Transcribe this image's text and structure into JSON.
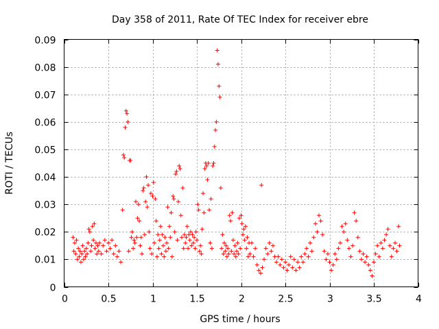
{
  "chart_data": {
    "type": "scatter",
    "title": "Day 358 of 2011, Rate Of TEC Index for receiver ebre",
    "xlabel": "GPS time / hours",
    "ylabel": "ROTI / TECUs",
    "xlim": [
      0,
      4
    ],
    "ylim": [
      0,
      0.09
    ],
    "xticks": [
      0,
      0.5,
      1,
      1.5,
      2,
      2.5,
      3,
      3.5,
      4
    ],
    "xtick_labels": [
      "0",
      "0.5",
      "1",
      "1.5",
      "2",
      "2.5",
      "3",
      "3.5",
      "4"
    ],
    "yticks": [
      0,
      0.01,
      0.02,
      0.03,
      0.04,
      0.05,
      0.06,
      0.07,
      0.08,
      0.09
    ],
    "ytick_labels": [
      "0",
      "0.01",
      "0.02",
      "0.03",
      "0.04",
      "0.05",
      "0.06",
      "0.07",
      "0.08",
      "0.09"
    ],
    "grid": true,
    "marker": "+",
    "color": "#ff0000",
    "series": [
      {
        "name": "ROTI",
        "points": [
          [
            0.1,
            0.018
          ],
          [
            0.11,
            0.013
          ],
          [
            0.12,
            0.016
          ],
          [
            0.13,
            0.012
          ],
          [
            0.14,
            0.017
          ],
          [
            0.15,
            0.01
          ],
          [
            0.16,
            0.014
          ],
          [
            0.17,
            0.011
          ],
          [
            0.18,
            0.013
          ],
          [
            0.19,
            0.009
          ],
          [
            0.2,
            0.012
          ],
          [
            0.21,
            0.015
          ],
          [
            0.22,
            0.01
          ],
          [
            0.23,
            0.013
          ],
          [
            0.24,
            0.011
          ],
          [
            0.25,
            0.014
          ],
          [
            0.26,
            0.012
          ],
          [
            0.27,
            0.016
          ],
          [
            0.28,
            0.021
          ],
          [
            0.29,
            0.02
          ],
          [
            0.3,
            0.013
          ],
          [
            0.31,
            0.015
          ],
          [
            0.32,
            0.022
          ],
          [
            0.33,
            0.017
          ],
          [
            0.34,
            0.023
          ],
          [
            0.35,
            0.014
          ],
          [
            0.36,
            0.016
          ],
          [
            0.37,
            0.012
          ],
          [
            0.38,
            0.015
          ],
          [
            0.39,
            0.013
          ],
          [
            0.4,
            0.016
          ],
          [
            0.42,
            0.012
          ],
          [
            0.44,
            0.015
          ],
          [
            0.46,
            0.017
          ],
          [
            0.48,
            0.013
          ],
          [
            0.5,
            0.016
          ],
          [
            0.52,
            0.014
          ],
          [
            0.54,
            0.017
          ],
          [
            0.56,
            0.012
          ],
          [
            0.58,
            0.015
          ],
          [
            0.6,
            0.011
          ],
          [
            0.62,
            0.013
          ],
          [
            0.64,
            0.009
          ],
          [
            0.66,
            0.028
          ],
          [
            0.67,
            0.048
          ],
          [
            0.68,
            0.047
          ],
          [
            0.69,
            0.058
          ],
          [
            0.7,
            0.064
          ],
          [
            0.71,
            0.063
          ],
          [
            0.72,
            0.06
          ],
          [
            0.73,
            0.013
          ],
          [
            0.74,
            0.046
          ],
          [
            0.75,
            0.046
          ],
          [
            0.76,
            0.018
          ],
          [
            0.77,
            0.02
          ],
          [
            0.78,
            0.014
          ],
          [
            0.79,
            0.017
          ],
          [
            0.8,
            0.016
          ],
          [
            0.81,
            0.031
          ],
          [
            0.82,
            0.018
          ],
          [
            0.83,
            0.025
          ],
          [
            0.84,
            0.03
          ],
          [
            0.85,
            0.024
          ],
          [
            0.86,
            0.015
          ],
          [
            0.87,
            0.018
          ],
          [
            0.88,
            0.012
          ],
          [
            0.89,
            0.035
          ],
          [
            0.9,
            0.036
          ],
          [
            0.91,
            0.019
          ],
          [
            0.92,
            0.031
          ],
          [
            0.93,
            0.04
          ],
          [
            0.94,
            0.029
          ],
          [
            0.95,
            0.037
          ],
          [
            0.96,
            0.02
          ],
          [
            0.97,
            0.014
          ],
          [
            0.98,
            0.034
          ],
          [
            0.99,
            0.012
          ],
          [
            1.0,
            0.033
          ],
          [
            1.01,
            0.038
          ],
          [
            1.02,
            0.016
          ],
          [
            1.03,
            0.032
          ],
          [
            1.04,
            0.024
          ],
          [
            1.05,
            0.011
          ],
          [
            1.06,
            0.019
          ],
          [
            1.07,
            0.014
          ],
          [
            1.08,
            0.017
          ],
          [
            1.09,
            0.022
          ],
          [
            1.1,
            0.012
          ],
          [
            1.11,
            0.019
          ],
          [
            1.12,
            0.015
          ],
          [
            1.13,
            0.011
          ],
          [
            1.14,
            0.018
          ],
          [
            1.15,
            0.013
          ],
          [
            1.16,
            0.016
          ],
          [
            1.17,
            0.029
          ],
          [
            1.18,
            0.014
          ],
          [
            1.19,
            0.022
          ],
          [
            1.2,
            0.018
          ],
          [
            1.21,
            0.027
          ],
          [
            1.22,
            0.011
          ],
          [
            1.23,
            0.033
          ],
          [
            1.24,
            0.032
          ],
          [
            1.25,
            0.02
          ],
          [
            1.26,
            0.041
          ],
          [
            1.27,
            0.042
          ],
          [
            1.28,
            0.017
          ],
          [
            1.29,
            0.031
          ],
          [
            1.3,
            0.044
          ],
          [
            1.31,
            0.043
          ],
          [
            1.32,
            0.026
          ],
          [
            1.33,
            0.018
          ],
          [
            1.34,
            0.036
          ],
          [
            1.35,
            0.014
          ],
          [
            1.36,
            0.019
          ],
          [
            1.37,
            0.016
          ],
          [
            1.38,
            0.018
          ],
          [
            1.39,
            0.022
          ],
          [
            1.4,
            0.014
          ],
          [
            1.41,
            0.019
          ],
          [
            1.42,
            0.017
          ],
          [
            1.43,
            0.02
          ],
          [
            1.44,
            0.015
          ],
          [
            1.45,
            0.019
          ],
          [
            1.46,
            0.016
          ],
          [
            1.47,
            0.018
          ],
          [
            1.48,
            0.014
          ],
          [
            1.49,
            0.02
          ],
          [
            1.5,
            0.017
          ],
          [
            1.51,
            0.03
          ],
          [
            1.52,
            0.028
          ],
          [
            1.53,
            0.013
          ],
          [
            1.54,
            0.015
          ],
          [
            1.55,
            0.012
          ],
          [
            1.56,
            0.021
          ],
          [
            1.57,
            0.034
          ],
          [
            1.58,
            0.027
          ],
          [
            1.59,
            0.043
          ],
          [
            1.6,
            0.045
          ],
          [
            1.61,
            0.044
          ],
          [
            1.62,
            0.039
          ],
          [
            1.63,
            0.045
          ],
          [
            1.64,
            0.028
          ],
          [
            1.65,
            0.016
          ],
          [
            1.66,
            0.032
          ],
          [
            1.67,
            0.014
          ],
          [
            1.68,
            0.044
          ],
          [
            1.69,
            0.045
          ],
          [
            1.7,
            0.051
          ],
          [
            1.71,
            0.057
          ],
          [
            1.72,
            0.06
          ],
          [
            1.73,
            0.086
          ],
          [
            1.74,
            0.081
          ],
          [
            1.75,
            0.073
          ],
          [
            1.76,
            0.069
          ],
          [
            1.77,
            0.036
          ],
          [
            1.78,
            0.014
          ],
          [
            1.79,
            0.019
          ],
          [
            1.8,
            0.012
          ],
          [
            1.81,
            0.016
          ],
          [
            1.82,
            0.013
          ],
          [
            1.83,
            0.015
          ],
          [
            1.84,
            0.011
          ],
          [
            1.85,
            0.014
          ],
          [
            1.86,
            0.012
          ],
          [
            1.87,
            0.026
          ],
          [
            1.88,
            0.024
          ],
          [
            1.89,
            0.013
          ],
          [
            1.9,
            0.027
          ],
          [
            1.91,
            0.017
          ],
          [
            1.92,
            0.012
          ],
          [
            1.93,
            0.015
          ],
          [
            1.94,
            0.011
          ],
          [
            1.95,
            0.013
          ],
          [
            1.96,
            0.016
          ],
          [
            1.97,
            0.012
          ],
          [
            1.98,
            0.025
          ],
          [
            1.99,
            0.014
          ],
          [
            2.0,
            0.026
          ],
          [
            2.01,
            0.023
          ],
          [
            2.02,
            0.019
          ],
          [
            2.03,
            0.021
          ],
          [
            2.04,
            0.017
          ],
          [
            2.05,
            0.022
          ],
          [
            2.06,
            0.014
          ],
          [
            2.07,
            0.018
          ],
          [
            2.08,
            0.011
          ],
          [
            2.09,
            0.016
          ],
          [
            2.1,
            0.012
          ],
          [
            2.12,
            0.016
          ],
          [
            2.14,
            0.011
          ],
          [
            2.16,
            0.014
          ],
          [
            2.18,
            0.008
          ],
          [
            2.2,
            0.006
          ],
          [
            2.22,
            0.005
          ],
          [
            2.23,
            0.037
          ],
          [
            2.24,
            0.007
          ],
          [
            2.26,
            0.01
          ],
          [
            2.28,
            0.014
          ],
          [
            2.3,
            0.012
          ],
          [
            2.32,
            0.016
          ],
          [
            2.34,
            0.013
          ],
          [
            2.36,
            0.015
          ],
          [
            2.38,
            0.011
          ],
          [
            2.4,
            0.009
          ],
          [
            2.42,
            0.011
          ],
          [
            2.44,
            0.008
          ],
          [
            2.46,
            0.01
          ],
          [
            2.48,
            0.007
          ],
          [
            2.5,
            0.009
          ],
          [
            2.52,
            0.006
          ],
          [
            2.54,
            0.008
          ],
          [
            2.56,
            0.011
          ],
          [
            2.58,
            0.007
          ],
          [
            2.6,
            0.01
          ],
          [
            2.62,
            0.006
          ],
          [
            2.64,
            0.009
          ],
          [
            2.66,
            0.007
          ],
          [
            2.68,
            0.011
          ],
          [
            2.7,
            0.009
          ],
          [
            2.72,
            0.012
          ],
          [
            2.74,
            0.014
          ],
          [
            2.76,
            0.011
          ],
          [
            2.78,
            0.016
          ],
          [
            2.8,
            0.013
          ],
          [
            2.82,
            0.018
          ],
          [
            2.84,
            0.023
          ],
          [
            2.86,
            0.02
          ],
          [
            2.88,
            0.026
          ],
          [
            2.9,
            0.024
          ],
          [
            2.92,
            0.019
          ],
          [
            2.94,
            0.013
          ],
          [
            2.96,
            0.01
          ],
          [
            2.98,
            0.012
          ],
          [
            3.0,
            0.009
          ],
          [
            3.02,
            0.006
          ],
          [
            3.04,
            0.008
          ],
          [
            3.06,
            0.012
          ],
          [
            3.08,
            0.01
          ],
          [
            3.1,
            0.014
          ],
          [
            3.12,
            0.016
          ],
          [
            3.14,
            0.022
          ],
          [
            3.16,
            0.02
          ],
          [
            3.18,
            0.023
          ],
          [
            3.2,
            0.017
          ],
          [
            3.22,
            0.014
          ],
          [
            3.24,
            0.011
          ],
          [
            3.26,
            0.015
          ],
          [
            3.28,
            0.027
          ],
          [
            3.3,
            0.024
          ],
          [
            3.32,
            0.018
          ],
          [
            3.34,
            0.013
          ],
          [
            3.36,
            0.01
          ],
          [
            3.38,
            0.012
          ],
          [
            3.4,
            0.009
          ],
          [
            3.42,
            0.011
          ],
          [
            3.44,
            0.008
          ],
          [
            3.46,
            0.006
          ],
          [
            3.48,
            0.004
          ],
          [
            3.5,
            0.009
          ],
          [
            3.52,
            0.012
          ],
          [
            3.54,
            0.015
          ],
          [
            3.56,
            0.011
          ],
          [
            3.58,
            0.016
          ],
          [
            3.6,
            0.014
          ],
          [
            3.62,
            0.017
          ],
          [
            3.64,
            0.019
          ],
          [
            3.66,
            0.021
          ],
          [
            3.68,
            0.015
          ],
          [
            3.7,
            0.011
          ],
          [
            3.72,
            0.014
          ],
          [
            3.74,
            0.016
          ],
          [
            3.76,
            0.013
          ],
          [
            3.78,
            0.022
          ],
          [
            3.79,
            0.015
          ]
        ]
      }
    ]
  }
}
